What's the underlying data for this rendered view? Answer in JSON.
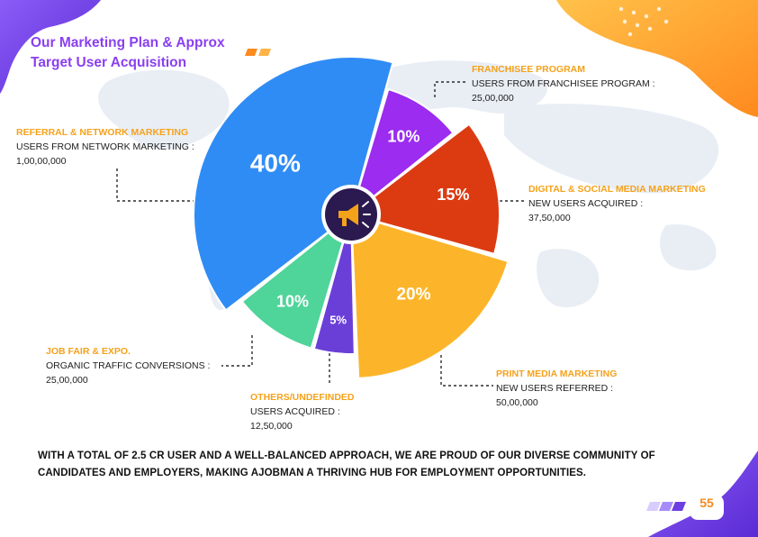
{
  "title": {
    "line1": "Our Marketing Plan & Approx",
    "line2": "Target User Acquisition"
  },
  "chart_data": {
    "type": "pie",
    "title": "Our Marketing Plan & Approx Target User Acquisition",
    "slices": [
      {
        "label": "FRANCHISEE PROGRAM",
        "value": 10,
        "display": "10%",
        "color": "#9b2cf0"
      },
      {
        "label": "DIGITAL & SOCIAL MEDIA MARKETING",
        "value": 15,
        "display": "15%",
        "color": "#dc3b12"
      },
      {
        "label": "PRINT MEDIA MARKETING",
        "value": 20,
        "display": "20%",
        "color": "#fcb52a"
      },
      {
        "label": "OTHERS/UNDEFINDED",
        "value": 5,
        "display": "5%",
        "color": "#6a3fd8"
      },
      {
        "label": "JOB FAIR & EXPO.",
        "value": 10,
        "display": "10%",
        "color": "#4fd49a"
      },
      {
        "label": "REFERRAL & NETWORK MARKETING",
        "value": 40,
        "display": "40%",
        "color": "#2f8cf5"
      }
    ]
  },
  "callouts": [
    {
      "category": "FRANCHISEE PROGRAM",
      "description": "USERS FROM FRANCHISEE PROGRAM :",
      "value": "25,00,000"
    },
    {
      "category": "DIGITAL & SOCIAL MEDIA MARKETING",
      "description": "NEW USERS ACQUIRED :",
      "value": "37,50,000"
    },
    {
      "category": "PRINT MEDIA MARKETING",
      "description": "NEW USERS REFERRED :",
      "value": "50,00,000"
    },
    {
      "category": "OTHERS/UNDEFINDED",
      "description": "USERS ACQUIRED :",
      "value": "12,50,000"
    },
    {
      "category": "JOB FAIR & EXPO.",
      "description": "ORGANIC TRAFFIC CONVERSIONS :",
      "value": "25,00,000"
    },
    {
      "category": "REFERRAL & NETWORK MARKETING",
      "description": "USERS FROM NETWORK MARKETING :",
      "value": "1,00,00,000"
    }
  ],
  "footer": {
    "text": "WITH A TOTAL OF 2.5 CR USER AND A WELL-BALANCED APPROACH, WE ARE PROUD OF OUR DIVERSE COMMUNITY OF CANDIDATES AND EMPLOYERS, MAKING AJOBMAN A THRIVING HUB FOR EMPLOYMENT OPPORTUNITIES."
  },
  "page_number": "55",
  "icons": {
    "center": "megaphone-icon"
  }
}
